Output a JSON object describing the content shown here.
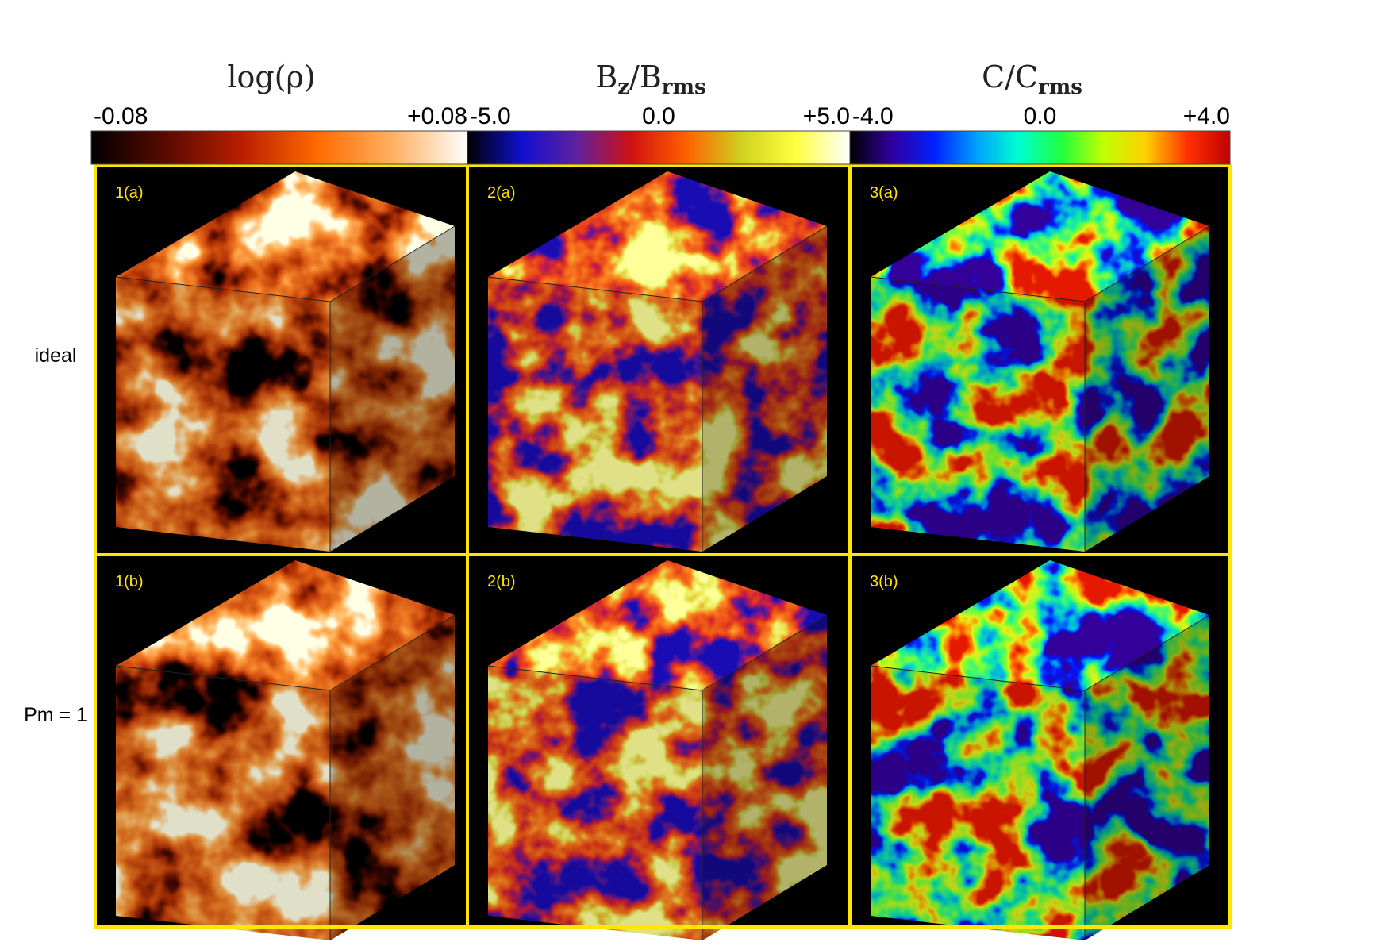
{
  "colorbars": [
    {
      "title": [
        {
          "text": "log(ρ)"
        }
      ],
      "ticks": [
        "-0.08",
        "+0.08"
      ],
      "colors": [
        "#000000",
        "#5a0a00",
        "#b81e00",
        "#ff6a00",
        "#ffb060",
        "#ffffff"
      ]
    },
    {
      "title": [
        {
          "text": "B"
        },
        {
          "text": "z",
          "sub": true
        },
        {
          "text": "/B"
        },
        {
          "text": "rms",
          "sub": true
        }
      ],
      "ticks": [
        "-5.0",
        "0.0",
        "+5.0"
      ],
      "colors": [
        "#000000",
        "#1010d0",
        "#6020a0",
        "#d01010",
        "#ff6000",
        "#d0d020",
        "#ffff40",
        "#ffffff"
      ]
    },
    {
      "title": [
        {
          "text": "C/C"
        },
        {
          "text": "rms",
          "sub": true
        }
      ],
      "ticks": [
        "-4.0",
        "0.0",
        "+4.0"
      ],
      "colors": [
        "#000000",
        "#3000a0",
        "#0020ff",
        "#00a0ff",
        "#00ffd0",
        "#20ff40",
        "#c0ff00",
        "#ffd000",
        "#ff3000",
        "#c00000"
      ]
    }
  ],
  "rows": [
    "ideal",
    "Pm = 1"
  ],
  "panels": [
    [
      "1(a)",
      "2(a)",
      "3(a)"
    ],
    [
      "1(b)",
      "2(b)",
      "3(b)"
    ]
  ]
}
